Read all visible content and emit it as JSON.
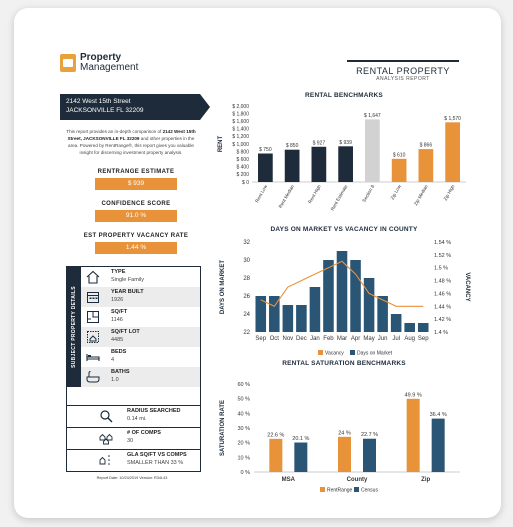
{
  "brand": {
    "line1": "Property",
    "line2": "Management"
  },
  "report": {
    "title": "RENTAL PROPERTY",
    "subtitle": "ANALYSIS REPORT"
  },
  "address": {
    "line1": "2142 West 15th Street",
    "line2": "JACKSONVILLE FL 32209"
  },
  "intro": {
    "pre": "This report provides an in-depth comparison of ",
    "bold": "2142 West 15th Street, JACKSONVILLE FL 32209",
    "post": " and other properties in the area. Powered by RentRange®, this report gives you valuable insight for discerning investment property analysis."
  },
  "metrics": [
    {
      "label": "RENTRANGE ESTIMATE",
      "value": "$ 939"
    },
    {
      "label": "CONFIDENCE SCORE",
      "value": "91.0 %"
    },
    {
      "label": "EST PROPERTY VACANCY RATE",
      "value": "1.44 %"
    }
  ],
  "details": {
    "side_label": "SUBJECT PROPERTY DETAILS",
    "rows": [
      {
        "label": "TYPE",
        "value": "Single Family",
        "icon": "house-icon"
      },
      {
        "label": "YEAR BUILT",
        "value": "1926",
        "icon": "calendar-icon"
      },
      {
        "label": "SQ/FT",
        "value": "1146",
        "icon": "floorplan-icon"
      },
      {
        "label": "SQ/FT LOT",
        "value": "4485",
        "icon": "lot-icon"
      },
      {
        "label": "BEDS",
        "value": "4",
        "icon": "bed-icon"
      },
      {
        "label": "BATHS",
        "value": "1.0",
        "icon": "bathtub-icon"
      }
    ],
    "extra": [
      {
        "label": "RADIUS SEARCHED",
        "value": "0.14 mi.",
        "icon": "magnifier-icon"
      },
      {
        "label": "# OF COMPS",
        "value": "30",
        "icon": "houses-icon"
      },
      {
        "label": "GLA SQ/FT VS COMPS",
        "value": "SMALLER THAN 33 %",
        "icon": "compare-icon"
      }
    ]
  },
  "footer": "Report Date: 10/24/2019 Version: R34L43",
  "colors": {
    "navy": "#1d2b3a",
    "orange": "#e8923a",
    "grey": "#d2d2d2",
    "teal": "#2a5575"
  },
  "chart_data": [
    {
      "type": "bar",
      "title": "RENTAL BENCHMARKS",
      "ylabel": "RENT",
      "ylim": [
        0,
        2000
      ],
      "yticks": [
        "$ 0",
        "$ 200",
        "$ 400",
        "$ 600",
        "$ 800",
        "$ 1,000",
        "$ 1,200",
        "$ 1,400",
        "$ 1,600",
        "$ 1,800",
        "$ 2,000"
      ],
      "categories": [
        "Rent Low",
        "Rent Median",
        "Rent High",
        "Rent Estimate",
        "Section 8",
        "Zip Low",
        "Zip Median",
        "Zip High"
      ],
      "values": [
        750,
        850,
        927,
        939,
        1647,
        610,
        866,
        1570
      ],
      "labels": [
        "$ 750",
        "$ 850",
        "$ 927",
        "$ 939",
        "$ 1,647",
        "$ 610",
        "$ 866",
        "$ 1,570"
      ],
      "colors": [
        "#1d2b3a",
        "#1d2b3a",
        "#1d2b3a",
        "#1d2b3a",
        "#d2d2d2",
        "#e8923a",
        "#e8923a",
        "#e8923a"
      ]
    },
    {
      "type": "bar+line",
      "title": "DAYS ON MARKET VS VACANCY IN COUNTY",
      "ylabel": "DAYS ON MARKET",
      "y2label": "VACANCY",
      "ylim": [
        22,
        32
      ],
      "y2lim": [
        1.4,
        1.54
      ],
      "yticks": [
        "22",
        "24",
        "26",
        "28",
        "30",
        "32"
      ],
      "y2ticks": [
        "1.4 %",
        "1.42 %",
        "1.44 %",
        "1.46 %",
        "1.48 %",
        "1.5 %",
        "1.52 %",
        "1.54 %"
      ],
      "categories": [
        "Sep",
        "Oct",
        "Nov",
        "Dec",
        "Jan",
        "Feb",
        "Mar",
        "Apr",
        "May",
        "Jun",
        "Jul",
        "Aug",
        "Sep"
      ],
      "days": [
        26,
        26,
        25,
        25,
        27,
        30,
        31,
        30,
        28,
        26,
        24,
        23,
        23
      ],
      "vacancy": [
        1.45,
        1.44,
        1.47,
        1.48,
        1.49,
        1.5,
        1.51,
        1.49,
        1.46,
        1.45,
        1.44,
        1.44,
        1.44
      ],
      "legend": [
        "Vacancy",
        "Days on Market"
      ]
    },
    {
      "type": "bar",
      "title": "RENTAL SATURATION BENCHMARKS",
      "ylabel": "SATURATION RATE",
      "ylim": [
        0,
        60
      ],
      "yticks": [
        "0 %",
        "10 %",
        "20 %",
        "30 %",
        "40 %",
        "50 %",
        "60 %"
      ],
      "categories": [
        "MSA",
        "County",
        "Zip"
      ],
      "series": [
        {
          "name": "RentRange",
          "values": [
            22.6,
            24,
            49.9
          ],
          "labels": [
            "22.6 %",
            "24 %",
            "49.9 %"
          ]
        },
        {
          "name": "Census",
          "values": [
            20.1,
            22.7,
            36.4
          ],
          "labels": [
            "20.1 %",
            "22.7 %",
            "36.4 %"
          ]
        }
      ]
    }
  ]
}
